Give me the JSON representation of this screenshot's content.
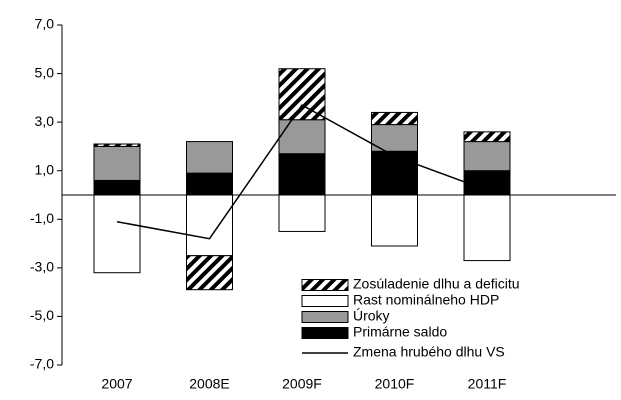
{
  "chart_data": {
    "type": "bar",
    "categories": [
      "2007",
      "2008E",
      "2009F",
      "2010F",
      "2011F"
    ],
    "series": [
      {
        "name": "Zosúladenie dlhu a deficitu",
        "color": "hatch",
        "values": [
          0.1,
          -1.4,
          2.1,
          0.5,
          0.4
        ]
      },
      {
        "name": "Rast nominálneho HDP",
        "color": "#ffffff",
        "values": [
          -3.2,
          -2.5,
          -1.5,
          -2.1,
          -2.7
        ]
      },
      {
        "name": "Úroky",
        "color": "#999999",
        "values": [
          1.4,
          1.3,
          1.4,
          1.1,
          1.2
        ]
      },
      {
        "name": "Primárne saldo",
        "color": "#000000",
        "values": [
          0.6,
          0.9,
          1.7,
          1.8,
          1.0
        ]
      },
      {
        "name": "Zmena hrubého dlhu VS",
        "color": "#000000",
        "type": "line",
        "values": [
          -1.1,
          -1.8,
          3.7,
          1.6,
          0.2
        ]
      }
    ],
    "ylim": [
      -7,
      7
    ],
    "yticks": [
      {
        "value": -7,
        "label": "-7,0"
      },
      {
        "value": -5,
        "label": "-5,0"
      },
      {
        "value": -3,
        "label": "-3,0"
      },
      {
        "value": -1,
        "label": "-1,0"
      },
      {
        "value": 1,
        "label": "1,0"
      },
      {
        "value": 3,
        "label": "3,0"
      },
      {
        "value": 5,
        "label": "5,0"
      },
      {
        "value": 7,
        "label": "7,0"
      }
    ]
  }
}
